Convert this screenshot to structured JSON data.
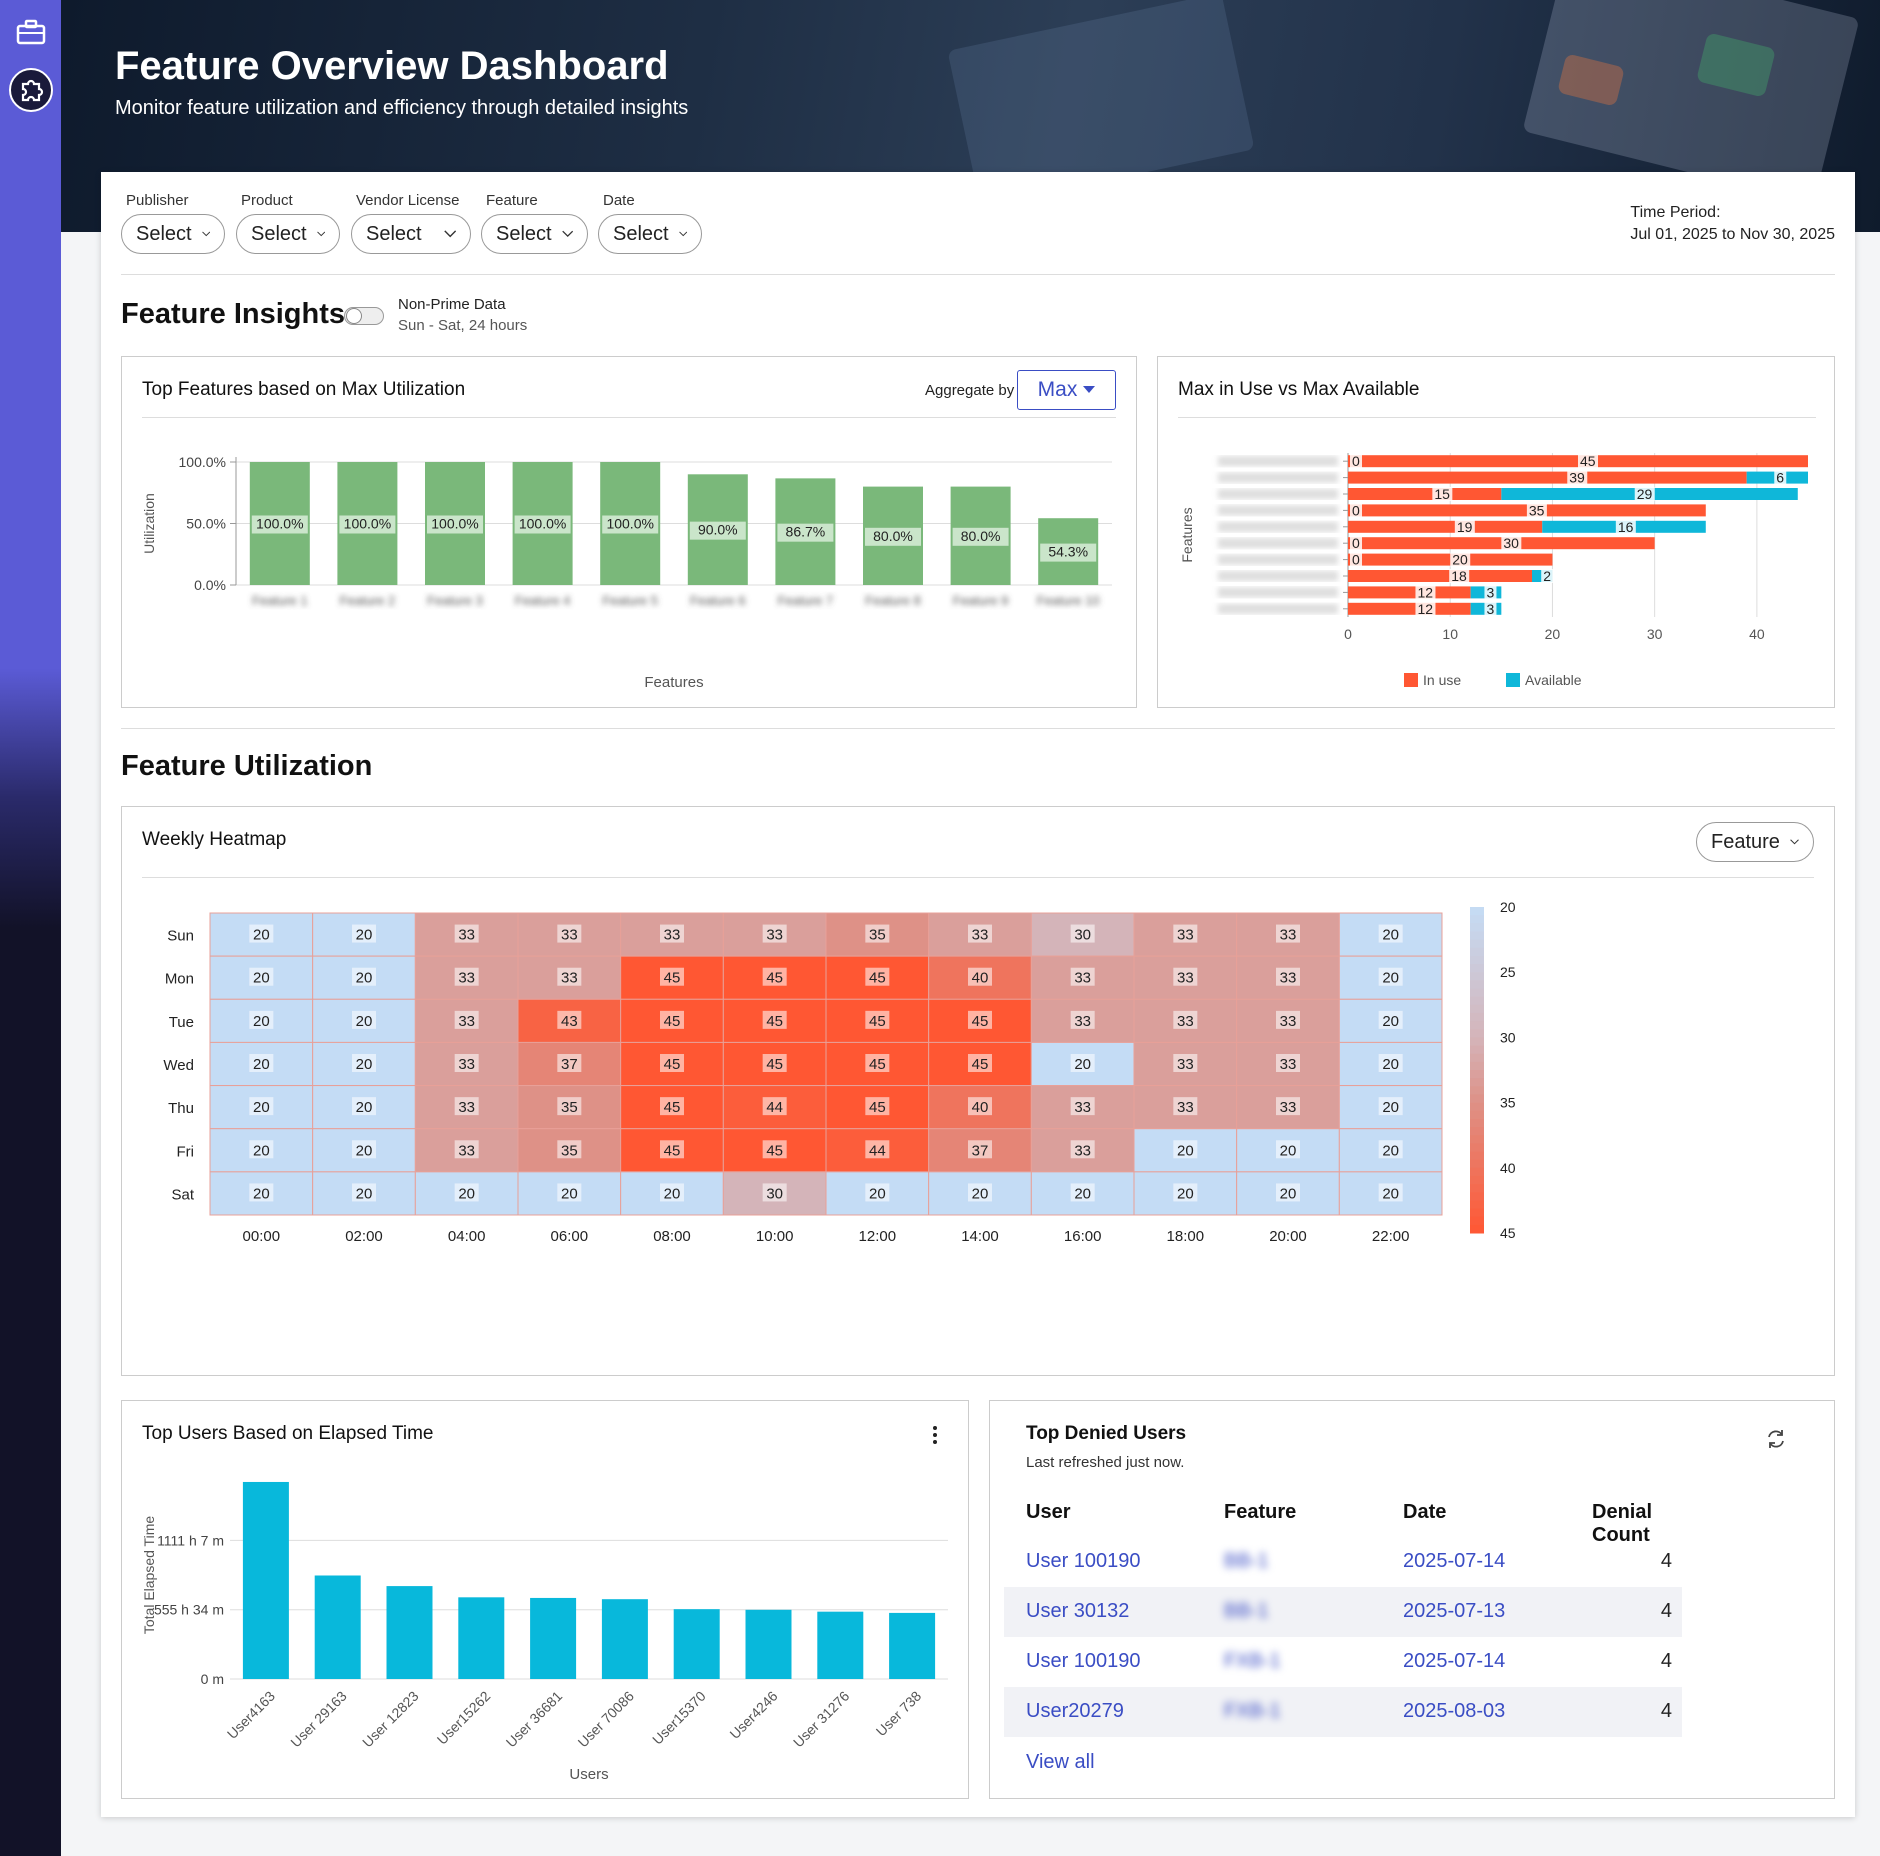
{
  "header": {
    "title": "Feature Overview Dashboard",
    "subtitle": "Monitor feature utilization and efficiency through detailed insights"
  },
  "sidebar": {
    "icons": [
      "briefcase-icon",
      "puzzle-icon"
    ]
  },
  "filters": {
    "publisher": {
      "label": "Publisher",
      "value": "Select"
    },
    "product": {
      "label": "Product",
      "value": "Select"
    },
    "vendor_license": {
      "label": "Vendor License",
      "value": "Select"
    },
    "feature": {
      "label": "Feature",
      "value": "Select"
    },
    "date": {
      "label": "Date",
      "value": "Select"
    },
    "time_period_label": "Time Period:",
    "time_period_value": "Jul 01, 2025 to Nov 30, 2025"
  },
  "insights": {
    "title": "Feature Insights",
    "toggle_label": "Non-Prime Data",
    "toggle_sub": "Sun - Sat, 24 hours"
  },
  "top_features": {
    "title": "Top Features based on Max Utilization",
    "aggregate_label": "Aggregate by",
    "aggregate_value": "Max"
  },
  "max_use": {
    "title": "Max in Use vs Max Available"
  },
  "utilization": {
    "title": "Feature Utilization",
    "heatmap_title": "Weekly Heatmap",
    "heatmap_select": "Feature"
  },
  "top_users": {
    "title": "Top Users Based on Elapsed Time"
  },
  "denied": {
    "title": "Top Denied Users",
    "subtitle": "Last refreshed just now.",
    "columns": [
      "User",
      "Feature",
      "Date",
      "Denial Count"
    ],
    "rows": [
      {
        "user": "User 100190",
        "feature": "BB-1",
        "date": "2025-07-14",
        "count": "4"
      },
      {
        "user": "User 30132",
        "feature": "BB-1",
        "date": "2025-07-13",
        "count": "4"
      },
      {
        "user": "User 100190",
        "feature": "FXB-1",
        "date": "2025-07-14",
        "count": "4"
      },
      {
        "user": "User20279",
        "feature": "FXB-1",
        "date": "2025-08-03",
        "count": "4"
      }
    ],
    "view_all": "View all"
  },
  "colors": {
    "sidebar": "#5b5bd6",
    "accent": "#3a4dc4",
    "bar_green": "#7ab87a",
    "in_use": "#ff5733",
    "available": "#0fb7d9",
    "users_bar": "#08b8db"
  },
  "chart_data": [
    {
      "type": "bar",
      "title": "Top Features based on Max Utilization",
      "xlabel": "Features",
      "ylabel": "Utilization",
      "yticks": [
        "0.0%",
        "50.0%",
        "100.0%"
      ],
      "ylim": [
        0,
        100
      ],
      "categories": [
        "Feature 1",
        "Feature 2",
        "Feature 3",
        "Feature 4",
        "Feature 5",
        "Feature 6",
        "Feature 7",
        "Feature 8",
        "Feature 9",
        "Feature 10"
      ],
      "values": [
        100.0,
        100.0,
        100.0,
        100.0,
        100.0,
        90.0,
        86.7,
        80.0,
        80.0,
        54.3
      ],
      "data_labels": [
        "100.0%",
        "100.0%",
        "100.0%",
        "100.0%",
        "100.0%",
        "90.0%",
        "86.7%",
        "80.0%",
        "80.0%",
        "54.3%"
      ]
    },
    {
      "type": "bar",
      "orientation": "horizontal",
      "stacked": true,
      "title": "Max in Use vs Max Available",
      "ylabel": "Features",
      "xticks": [
        "0",
        "10",
        "20",
        "30",
        "40"
      ],
      "xlim": [
        0,
        45
      ],
      "series": [
        {
          "name": "In use",
          "values": [
            45,
            39,
            15,
            35,
            19,
            30,
            20,
            18,
            12,
            12
          ]
        },
        {
          "name": "Available",
          "values": [
            0,
            6,
            29,
            0,
            16,
            0,
            0,
            2,
            3,
            3
          ]
        }
      ],
      "labels_in_use": [
        "0",
        "39",
        "15",
        "0",
        "19",
        "0",
        "0",
        "18",
        "12",
        "12"
      ],
      "labels_in_use_2": [
        "45",
        "",
        "",
        "35",
        "",
        "30",
        "20",
        "",
        "",
        ""
      ],
      "labels_available": [
        "",
        "6",
        "29",
        "",
        "16",
        "",
        "",
        "2",
        "3",
        "3"
      ],
      "legend": [
        "In use",
        "Available"
      ]
    },
    {
      "type": "heatmap",
      "title": "Weekly Heatmap",
      "rows": [
        "Sun",
        "Mon",
        "Tue",
        "Wed",
        "Thu",
        "Fri",
        "Sat"
      ],
      "columns": [
        "00:00",
        "02:00",
        "04:00",
        "06:00",
        "08:00",
        "10:00",
        "12:00",
        "14:00",
        "16:00",
        "18:00",
        "20:00",
        "22:00"
      ],
      "values": [
        [
          20,
          20,
          33,
          33,
          33,
          33,
          35,
          33,
          30,
          33,
          33,
          20
        ],
        [
          20,
          20,
          33,
          33,
          45,
          45,
          45,
          40,
          33,
          33,
          33,
          20
        ],
        [
          20,
          20,
          33,
          43,
          45,
          45,
          45,
          45,
          33,
          33,
          33,
          20
        ],
        [
          20,
          20,
          33,
          37,
          45,
          45,
          45,
          45,
          20,
          33,
          33,
          20
        ],
        [
          20,
          20,
          33,
          35,
          45,
          44,
          45,
          40,
          33,
          33,
          33,
          20
        ],
        [
          20,
          20,
          33,
          35,
          45,
          45,
          44,
          37,
          33,
          20,
          20,
          20
        ],
        [
          20,
          20,
          20,
          20,
          20,
          30,
          20,
          20,
          20,
          20,
          20,
          20
        ]
      ],
      "scale_ticks": [
        "20",
        "25",
        "30",
        "35",
        "40",
        "45"
      ],
      "range": [
        20,
        45
      ]
    },
    {
      "type": "bar",
      "title": "Top Users Based on Elapsed Time",
      "xlabel": "Users",
      "ylabel": "Total Elapsed Time",
      "yticks": [
        "0 m",
        "555 h 34 m",
        "1111 h 7 m"
      ],
      "categories": [
        "User4163",
        "User 29163",
        "User 12823",
        "User15262",
        "User 36681",
        "User 70086",
        "User15370",
        "User4246",
        "User 31276",
        "User 738"
      ],
      "values": [
        1580,
        830,
        745,
        655,
        650,
        640,
        560,
        555,
        540,
        530
      ]
    }
  ]
}
